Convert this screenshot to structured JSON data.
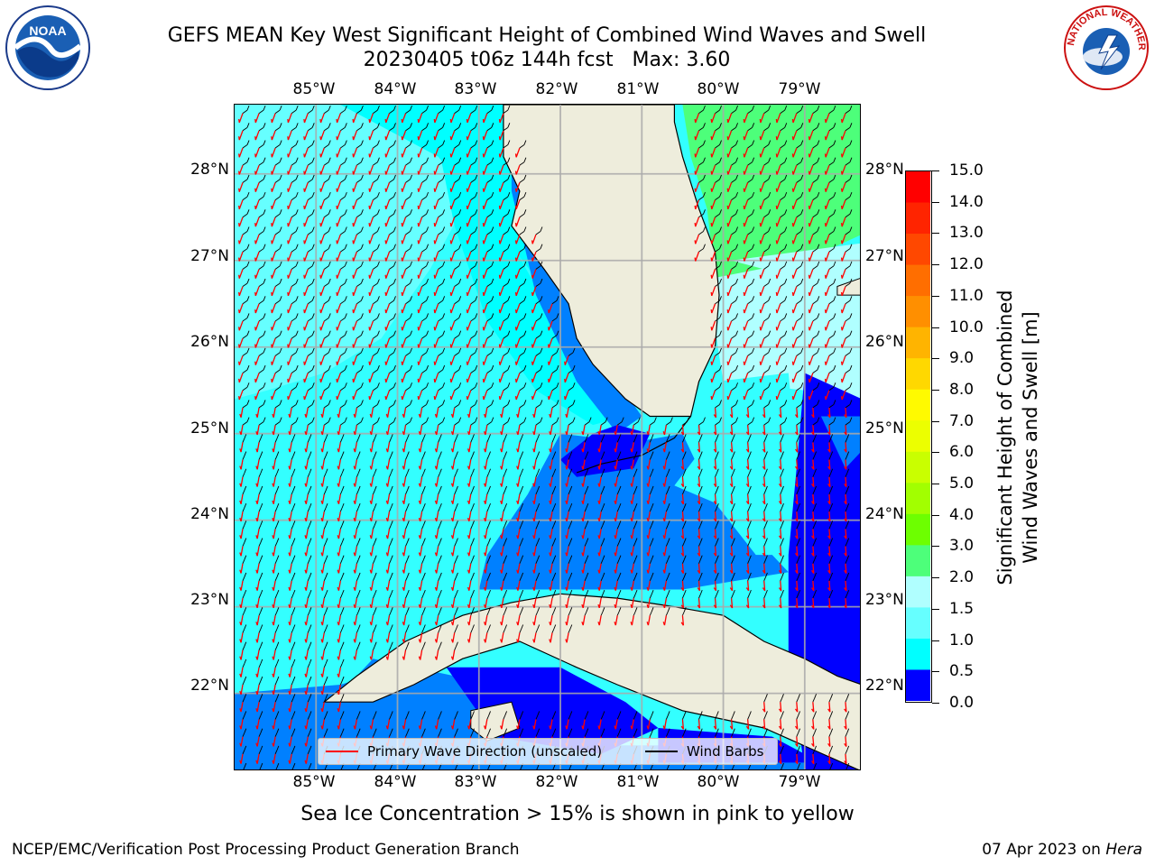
{
  "header": {
    "title_line1": "GEFS MEAN Key West Significant Height of Combined Wind Waves and Swell",
    "title_line2": "20230405 t06z 144h fcst   Max: 3.60"
  },
  "logos": {
    "left_icon": "noaa-logo-icon",
    "left_text": "NOAA",
    "right_icon": "national-weather-service-logo-icon",
    "right_text": "NATIONAL WEATHER SERVICE"
  },
  "map": {
    "lon_labels": [
      "85°W",
      "84°W",
      "83°W",
      "82°W",
      "81°W",
      "80°W",
      "79°W"
    ],
    "lat_labels": [
      "28°N",
      "27°N",
      "26°N",
      "25°N",
      "24°N",
      "23°N",
      "22°N"
    ],
    "lon_range": [
      -86.0,
      -78.3
    ],
    "lat_range": [
      21.1,
      28.8
    ],
    "land_color": "#eeeddc",
    "grid": true
  },
  "legend": {
    "wave_label": "Primary Wave Direction (unscaled)",
    "wave_color": "#ff0000",
    "wind_label": "Wind Barbs",
    "wind_color": "#000000"
  },
  "colorbar": {
    "label_line1": "Significant Height of Combined",
    "label_line2": "Wind Waves and Swell [m]",
    "ticks": [
      "15.0",
      "14.0",
      "13.0",
      "12.0",
      "11.0",
      "10.0",
      "9.0",
      "8.0",
      "7.0",
      "6.0",
      "5.0",
      "4.0",
      "3.0",
      "2.0",
      "1.5",
      "1.0",
      "0.5",
      "0.0"
    ],
    "colors_top_to_bottom": [
      "#ff0000",
      "#ff2400",
      "#ff4800",
      "#ff6e00",
      "#ff8f00",
      "#ffb400",
      "#ffd800",
      "#fffa00",
      "#ecff00",
      "#c9ff00",
      "#a2ff00",
      "#6dff00",
      "#00e400",
      "#4dff7a",
      "#b0ffff",
      "#66ffff",
      "#00ffff",
      "#0080ff",
      "#0000ff"
    ]
  },
  "notes": {
    "sea_ice": "Sea Ice Concentration > 15% is shown in pink to yellow"
  },
  "footer": {
    "left": "NCEP/EMC/Verification Post Processing Product Generation Branch",
    "right_prefix": "07 Apr 2023 on ",
    "right_host": "Hera"
  }
}
